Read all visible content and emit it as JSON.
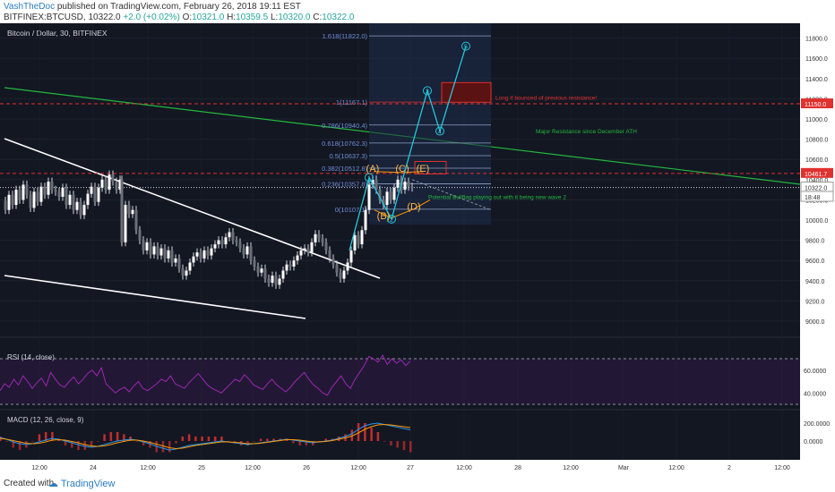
{
  "header": {
    "author": "VashTheDoc",
    "published": "published on TradingView.com, February 26, 2018 19:11 EST",
    "symbol": "BITFINEX:BTCUSD,",
    "last": "10322.0",
    "change": "+2.0 (+0.02%)",
    "o_label": "O:",
    "o_val": "10321.0",
    "h_label": "H:",
    "h_val": "10359.5",
    "l_label": "L:",
    "l_val": "10320.0",
    "c_label": "C:",
    "c_val": "10322.0"
  },
  "footer": {
    "created": "Created with",
    "brand": "TradingView"
  },
  "chart_data": {
    "type": "line",
    "title": "Bitcoin / Dollar, 30, BITFINEX",
    "x_ticks": [
      "12:00",
      "24",
      "12:00",
      "25",
      "12:00",
      "26",
      "12:00",
      "27",
      "12:00",
      "28",
      "12:00",
      "Mar",
      "12:00",
      "2",
      "12:00"
    ],
    "y_ticks": [
      9000,
      9200,
      9400,
      9600,
      9800,
      10000,
      10200,
      10400,
      10600,
      10800,
      11000,
      11200,
      11400,
      11600,
      11800,
      12000
    ],
    "ylim": [
      8900,
      12150
    ],
    "price_tags": [
      {
        "label": "11150.0",
        "value": 11150,
        "color": "#e0312f"
      },
      {
        "label": "10461.7",
        "value": 10461.7,
        "color": "#e0312f"
      },
      {
        "label": "10322.0",
        "value": 10322,
        "color": "#ffffff"
      },
      {
        "label": "18:48",
        "value": 10230,
        "color": "#ffffff"
      }
    ],
    "price_path": [
      [
        0,
        10190
      ],
      [
        4,
        10100
      ],
      [
        8,
        10250
      ],
      [
        12,
        10150
      ],
      [
        16,
        10300
      ],
      [
        20,
        10200
      ],
      [
        24,
        10350
      ],
      [
        28,
        10250
      ],
      [
        32,
        10120
      ],
      [
        36,
        10280
      ],
      [
        40,
        10180
      ],
      [
        44,
        10330
      ],
      [
        48,
        10250
      ],
      [
        52,
        10380
      ],
      [
        56,
        10300
      ],
      [
        60,
        10280
      ],
      [
        64,
        10230
      ],
      [
        68,
        10320
      ],
      [
        72,
        10150
      ],
      [
        76,
        10250
      ],
      [
        80,
        10100
      ],
      [
        84,
        10180
      ],
      [
        88,
        10050
      ],
      [
        92,
        10150
      ],
      [
        96,
        10260
      ],
      [
        100,
        10330
      ],
      [
        104,
        10180
      ],
      [
        108,
        10320
      ],
      [
        112,
        10400
      ],
      [
        116,
        10300
      ],
      [
        120,
        10450
      ],
      [
        124,
        10380
      ],
      [
        128,
        10300
      ],
      [
        132,
        10400
      ],
      [
        134,
        9780
      ],
      [
        138,
        10150
      ],
      [
        142,
        10060
      ],
      [
        146,
        10100
      ],
      [
        150,
        9900
      ],
      [
        154,
        9800
      ],
      [
        158,
        9700
      ],
      [
        162,
        9780
      ],
      [
        166,
        9660
      ],
      [
        170,
        9740
      ],
      [
        174,
        9650
      ],
      [
        178,
        9720
      ],
      [
        182,
        9620
      ],
      [
        186,
        9700
      ],
      [
        190,
        9580
      ],
      [
        194,
        9620
      ],
      [
        198,
        9520
      ],
      [
        202,
        9450
      ],
      [
        206,
        9500
      ],
      [
        210,
        9580
      ],
      [
        214,
        9640
      ],
      [
        218,
        9680
      ],
      [
        222,
        9620
      ],
      [
        226,
        9700
      ],
      [
        230,
        9650
      ],
      [
        234,
        9720
      ],
      [
        238,
        9760
      ],
      [
        242,
        9800
      ],
      [
        246,
        9760
      ],
      [
        250,
        9830
      ],
      [
        254,
        9880
      ],
      [
        258,
        9800
      ],
      [
        262,
        9780
      ],
      [
        266,
        9720
      ],
      [
        270,
        9660
      ],
      [
        274,
        9740
      ],
      [
        278,
        9600
      ],
      [
        282,
        9540
      ],
      [
        286,
        9480
      ],
      [
        290,
        9520
      ],
      [
        294,
        9420
      ],
      [
        298,
        9380
      ],
      [
        302,
        9450
      ],
      [
        306,
        9360
      ],
      [
        310,
        9420
      ],
      [
        314,
        9500
      ],
      [
        318,
        9560
      ],
      [
        322,
        9540
      ],
      [
        326,
        9600
      ],
      [
        330,
        9650
      ],
      [
        334,
        9700
      ],
      [
        338,
        9720
      ],
      [
        342,
        9680
      ],
      [
        346,
        9780
      ],
      [
        350,
        9860
      ],
      [
        354,
        9820
      ],
      [
        358,
        9780
      ],
      [
        362,
        9700
      ],
      [
        366,
        9620
      ],
      [
        370,
        9560
      ],
      [
        374,
        9480
      ],
      [
        378,
        9420
      ],
      [
        382,
        9500
      ],
      [
        386,
        9580
      ],
      [
        390,
        9700
      ],
      [
        394,
        9850
      ],
      [
        398,
        9760
      ],
      [
        402,
        9900
      ],
      [
        406,
        10100
      ],
      [
        410,
        10350
      ],
      [
        414,
        10400
      ],
      [
        418,
        10300
      ],
      [
        422,
        10200
      ],
      [
        426,
        10150
      ],
      [
        430,
        10280
      ],
      [
        434,
        10200
      ],
      [
        438,
        10320
      ],
      [
        442,
        10400
      ],
      [
        446,
        10300
      ],
      [
        450,
        10380
      ],
      [
        454,
        10330
      ],
      [
        458,
        10322
      ]
    ],
    "fib_levels": [
      {
        "label": "0(10107.1)",
        "value": 10107
      },
      {
        "label": "0.236(10357.8)",
        "value": 10358
      },
      {
        "label": "0.382(10512.8)",
        "value": 10513
      },
      {
        "label": "0.5(10637.3)",
        "value": 10637
      },
      {
        "label": "0.618(10762.3)",
        "value": 10762
      },
      {
        "label": "0.786(10940.4)",
        "value": 10940
      },
      {
        "label": "1(11167.1)",
        "value": 11167
      },
      {
        "label": "1.618(11822.0)",
        "value": 11822
      }
    ],
    "waves": [
      {
        "label": "1",
        "x": 412,
        "value": 10420
      },
      {
        "label": "2",
        "x": 437,
        "value": 10010
      },
      {
        "label": "3",
        "x": 477,
        "value": 11280
      },
      {
        "label": "4",
        "x": 491,
        "value": 10880
      },
      {
        "label": "5",
        "x": 520,
        "value": 11720
      }
    ],
    "abc_labels": [
      {
        "label": "(A)",
        "x": 416,
        "value": 10480
      },
      {
        "label": "(B)",
        "x": 428,
        "value": 10010
      },
      {
        "label": "(C)",
        "x": 449,
        "value": 10480
      },
      {
        "label": "(D)",
        "x": 462,
        "value": 10100
      },
      {
        "label": "(E)",
        "x": 472,
        "value": 10480
      }
    ],
    "annotations": [
      {
        "text": "Long if bounced of previous resistance!",
        "color": "#e0312f",
        "x": 553,
        "value": 11190
      },
      {
        "text": "Major Resistance since December ATH",
        "color": "#22b83e",
        "x": 598,
        "value": 10860
      },
      {
        "text": "Potential Bullflag playing out with it being new wave 2",
        "color": "#22b83e",
        "x": 478,
        "value": 10210
      }
    ],
    "rsi": {
      "label": "RSI (14, close)",
      "ticks": [
        {
          "label": "60.0000",
          "value": 60
        },
        {
          "label": "40.0000",
          "value": 40
        }
      ],
      "upper": 70,
      "lower": 30,
      "values": [
        42,
        48,
        45,
        52,
        47,
        55,
        50,
        44,
        49,
        53,
        46,
        58,
        52,
        47,
        45,
        50,
        54,
        48,
        52,
        57,
        60,
        55,
        62,
        48,
        44,
        40,
        43,
        45,
        41,
        46,
        50,
        44,
        42,
        45,
        48,
        52,
        50,
        55,
        48,
        46,
        44,
        49,
        53,
        57,
        52,
        47,
        44,
        42,
        40,
        44,
        48,
        52,
        50,
        56,
        52,
        47,
        45,
        43,
        48,
        52,
        47,
        44,
        41,
        45,
        50,
        54,
        58,
        52,
        47,
        44,
        40,
        38,
        45,
        50,
        55,
        48,
        44,
        52,
        58,
        64,
        72,
        70,
        67,
        73,
        65,
        70,
        66,
        69,
        64,
        68
      ]
    },
    "macd": {
      "label": "MACD (12, 26, close, 9)",
      "ticks": [
        {
          "label": "200.0000",
          "value": 200
        },
        {
          "label": "0.0000",
          "value": 0
        }
      ],
      "macd_values": [
        40,
        20,
        -10,
        -30,
        -40,
        -30,
        -10,
        10,
        30,
        20,
        0,
        -20,
        -40,
        -60,
        -70,
        -60,
        -40,
        -20,
        0,
        10,
        20,
        10,
        -10,
        -30,
        -60,
        -80,
        -100,
        -90,
        -70,
        -50,
        -40,
        -30,
        -20,
        -10,
        0,
        -10,
        -20,
        -30,
        -40,
        -30,
        -20,
        -10,
        0,
        10,
        20,
        10,
        0,
        -10,
        -20,
        -10,
        0,
        10,
        30,
        50,
        80,
        130,
        170,
        190,
        200,
        185,
        170,
        155,
        140,
        125
      ],
      "signal_values": [
        30,
        20,
        5,
        -10,
        -25,
        -30,
        -25,
        -10,
        10,
        15,
        10,
        -5,
        -20,
        -40,
        -55,
        -60,
        -55,
        -40,
        -20,
        -5,
        10,
        10,
        0,
        -15,
        -35,
        -55,
        -75,
        -85,
        -80,
        -65,
        -50,
        -40,
        -30,
        -20,
        -10,
        -10,
        -15,
        -20,
        -30,
        -30,
        -25,
        -15,
        -5,
        5,
        15,
        15,
        10,
        0,
        -10,
        -10,
        -5,
        5,
        20,
        35,
        55,
        90,
        130,
        160,
        180,
        185,
        180,
        170,
        160,
        150
      ]
    }
  }
}
